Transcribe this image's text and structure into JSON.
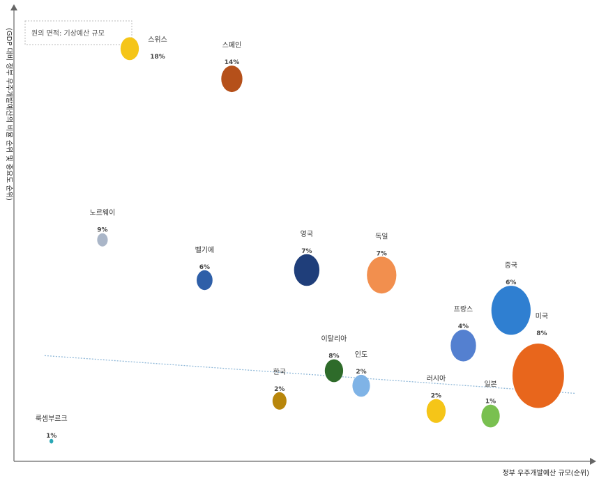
{
  "chart_data": {
    "type": "scatter",
    "title": "",
    "legend_label": "원의 면적: 기상예산 규모",
    "xlabel": "정부 우주개발예산 규모(순위)",
    "ylabel": "(GDP 대비 정부 우주개발예산의 비율 순위 및 중요도 순위)",
    "trendline": true,
    "grid": false,
    "points": [
      {
        "name": "스위스",
        "pct": "18%",
        "x": 1.7,
        "y": 8.2,
        "size": 1.2,
        "color": "#f5c518"
      },
      {
        "name": "스페인",
        "pct": "14%",
        "x": 3.2,
        "y": 7.6,
        "size": 1.6,
        "color": "#b5501a"
      },
      {
        "name": "노르웨이",
        "pct": "9%",
        "x": 1.3,
        "y": 4.4,
        "size": 0.4,
        "color": "#aab6c8"
      },
      {
        "name": "벨기에",
        "pct": "6%",
        "x": 2.8,
        "y": 3.6,
        "size": 0.9,
        "color": "#2e5fa8"
      },
      {
        "name": "영국",
        "pct": "7%",
        "x": 4.3,
        "y": 3.8,
        "size": 2.3,
        "color": "#1f3e7a"
      },
      {
        "name": "독일",
        "pct": "7%",
        "x": 5.4,
        "y": 3.7,
        "size": 3.1,
        "color": "#f28f4e"
      },
      {
        "name": "중국",
        "pct": "6%",
        "x": 7.3,
        "y": 3.0,
        "size": 5.5,
        "color": "#2f7fd1"
      },
      {
        "name": "미국",
        "pct": "8%",
        "x": 7.7,
        "y": 1.7,
        "size": 9.5,
        "color": "#e8661c"
      },
      {
        "name": "프랑스",
        "pct": "4%",
        "x": 6.6,
        "y": 2.3,
        "size": 2.3,
        "color": "#5480d0"
      },
      {
        "name": "이탈리아",
        "pct": "8%",
        "x": 4.7,
        "y": 1.8,
        "size": 1.2,
        "color": "#2e6b2a"
      },
      {
        "name": "인도",
        "pct": "2%",
        "x": 5.1,
        "y": 1.5,
        "size": 1.1,
        "color": "#7fb3e6"
      },
      {
        "name": "한국",
        "pct": "2%",
        "x": 3.9,
        "y": 1.2,
        "size": 0.7,
        "color": "#b8860b"
      },
      {
        "name": "러시아",
        "pct": "2%",
        "x": 6.2,
        "y": 1.0,
        "size": 1.3,
        "color": "#f5c518"
      },
      {
        "name": "일본",
        "pct": "1%",
        "x": 7.0,
        "y": 0.9,
        "size": 1.2,
        "color": "#79c050"
      },
      {
        "name": "룩셈부르크",
        "pct": "1%",
        "x": 0.55,
        "y": 0.4,
        "size": 0.05,
        "color": "#2aa7b5"
      }
    ]
  }
}
